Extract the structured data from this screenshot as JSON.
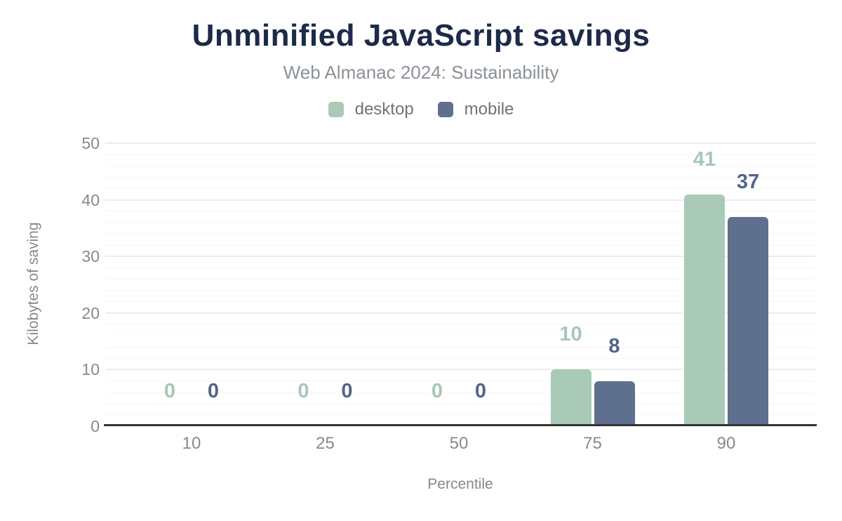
{
  "chart_data": {
    "type": "bar",
    "title": "Unminified JavaScript savings",
    "subtitle": "Web Almanac 2024: Sustainability",
    "xlabel": "Percentile",
    "ylabel": "Kilobytes of saving",
    "categories": [
      "10",
      "25",
      "50",
      "75",
      "90"
    ],
    "series": [
      {
        "name": "desktop",
        "color": "#a8cab7",
        "label_color": "#a5c8b5",
        "values": [
          0,
          0,
          0,
          10,
          41
        ],
        "data_labels": [
          "0",
          "0",
          "0",
          "10",
          "41"
        ]
      },
      {
        "name": "mobile",
        "color": "#5e708e",
        "label_color": "#53648a",
        "values": [
          0,
          0,
          0,
          8,
          37
        ],
        "data_labels": [
          "0",
          "0",
          "0",
          "8",
          "37"
        ]
      }
    ],
    "ylim": [
      0,
      50
    ],
    "yticks": [
      "0",
      "10",
      "20",
      "30",
      "40",
      "50"
    ],
    "grid": {
      "major_step": 10,
      "minor_step": 2,
      "minor_color": "#f5f6f6",
      "major_color": "#ececec"
    },
    "legend_position": "top",
    "colors": {
      "background": "#ffffff",
      "title": "#1d2a49",
      "subtitle": "#8b9197",
      "axis_line": "#333333",
      "tick_labels": "#85898f",
      "axis_titles": "#84888e",
      "legend_text": "#6e737b"
    }
  }
}
